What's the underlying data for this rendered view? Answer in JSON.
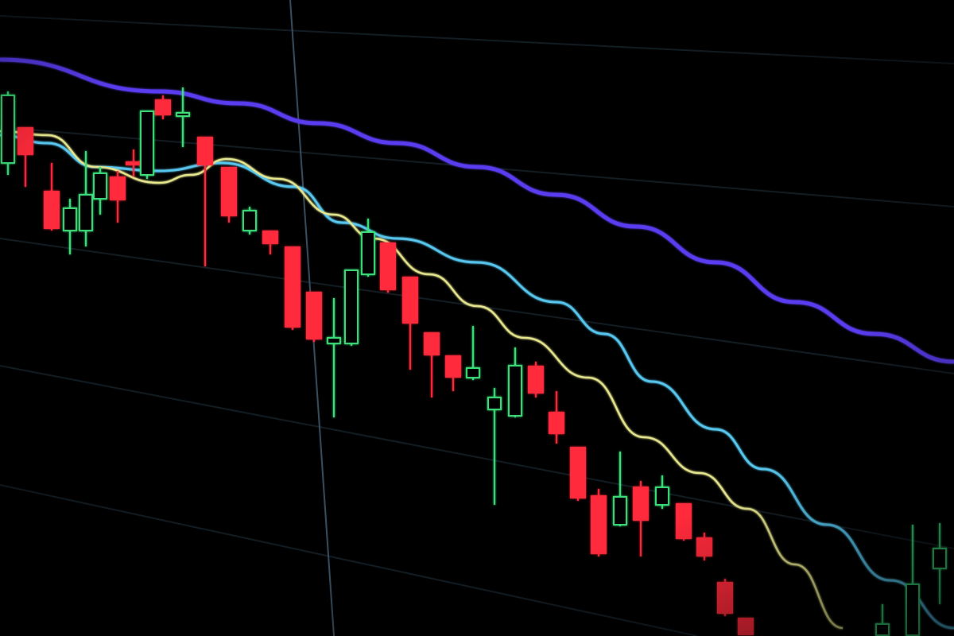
{
  "scene": {
    "subject": "candlestick-chart-on-screen",
    "colors": {
      "background": "#000000",
      "bullish": "#3be07a",
      "bearish": "#ff2a3a",
      "ma_long": "#5a3cf0",
      "ma_mid": "#58c8f0",
      "ma_short": "#e8e890",
      "grid": "#1c2a34"
    }
  }
}
